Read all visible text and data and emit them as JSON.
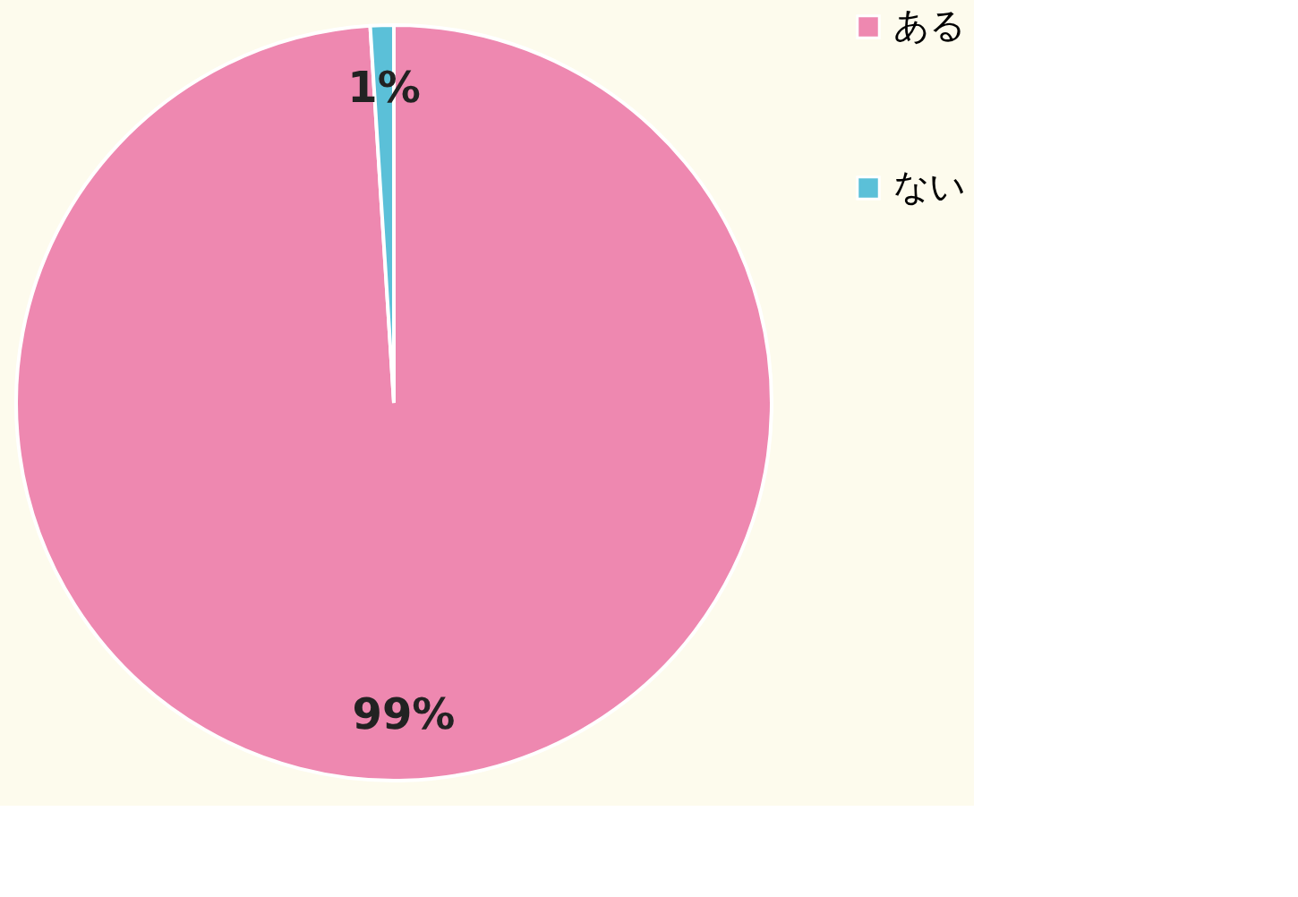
{
  "chart_data": {
    "type": "pie",
    "categories": [
      "ある",
      "ない"
    ],
    "values": [
      99,
      1
    ],
    "colors": [
      "#ee88b0",
      "#5bc0d8"
    ],
    "value_labels": [
      "99%",
      "1%"
    ],
    "legend": "right"
  }
}
